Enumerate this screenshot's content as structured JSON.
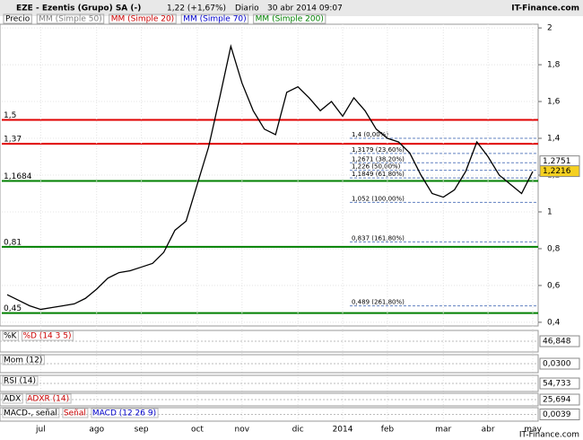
{
  "chart_data": {
    "type": "line",
    "title": "EZE - Ezentis (Grupo) SA (-)",
    "quote": "1,22 (+1,67%)",
    "period": "Diario",
    "date": "30 abr 2014 09:07",
    "source": "IT-Finance.com",
    "legend": [
      "Precio",
      "MM (Simple 50)",
      "MM (Simple 20)",
      "MM (Simple 70)",
      "MM (Simple 200)"
    ],
    "legend_colors": [
      "#000000",
      "#808080",
      "#cc0000",
      "#0000cc",
      "#008000"
    ],
    "categories": [
      null,
      null,
      null,
      "jul",
      null,
      null,
      null,
      null,
      "ago",
      null,
      null,
      null,
      "sep",
      null,
      null,
      null,
      null,
      "oct",
      null,
      null,
      null,
      "nov",
      null,
      null,
      null,
      null,
      "dic",
      null,
      null,
      null,
      "2014",
      null,
      null,
      null,
      "feb",
      null,
      null,
      null,
      null,
      "mar",
      null,
      null,
      null,
      "abr",
      null,
      null,
      null,
      "may"
    ],
    "series": [
      {
        "name": "Precio",
        "color": "#000000",
        "values": [
          0.55,
          0.52,
          0.49,
          0.47,
          0.48,
          0.49,
          0.5,
          0.53,
          0.58,
          0.64,
          0.67,
          0.68,
          0.7,
          0.72,
          0.78,
          0.9,
          0.95,
          1.15,
          1.35,
          1.62,
          1.9,
          1.7,
          1.55,
          1.45,
          1.42,
          1.65,
          1.68,
          1.62,
          1.55,
          1.6,
          1.52,
          1.62,
          1.55,
          1.45,
          1.4,
          1.38,
          1.32,
          1.2,
          1.1,
          1.08,
          1.12,
          1.22,
          1.38,
          1.3,
          1.2,
          1.15,
          1.1,
          1.22
        ]
      }
    ],
    "ylim": [
      0.38,
      2.02
    ],
    "yticks": [
      {
        "value": 0.4,
        "label": "0,4"
      },
      {
        "value": 0.6,
        "label": "0,6"
      },
      {
        "value": 0.8,
        "label": "0,8"
      },
      1,
      {
        "value": 1.2,
        "label": "1,2"
      },
      {
        "value": 1.4,
        "label": "1,4"
      },
      {
        "value": 1.6,
        "label": "1,6"
      },
      {
        "value": 1.8,
        "label": "1,8"
      },
      2
    ],
    "levels": [
      {
        "value": 1.5,
        "label": "1,5",
        "color": "#e00000"
      },
      {
        "value": 1.37,
        "label": "1,37",
        "color": "#e00000"
      },
      {
        "value": 1.1684,
        "label": "1,1684",
        "color": "#008000"
      },
      {
        "value": 0.81,
        "label": "0,81",
        "color": "#008000"
      },
      {
        "value": 0.45,
        "label": "0,45",
        "color": "#008000"
      }
    ],
    "fibonacci": [
      {
        "value": 1.4,
        "label": "1,4 (0,00%)"
      },
      {
        "value": 1.3179,
        "label": "1,3179 (23,60%)"
      },
      {
        "value": 1.2671,
        "label": "1,2671 (38,20%)"
      },
      {
        "value": 1.226,
        "label": "1,226 (50,00%)"
      },
      {
        "value": 1.1849,
        "label": "1,1849 (61,80%)"
      },
      {
        "value": 1.052,
        "label": "1,052 (100,00%)"
      },
      {
        "value": 0.837,
        "label": "0,837 (161,80%)"
      },
      {
        "value": 0.489,
        "label": "0,489 (261,80%)"
      }
    ],
    "price_markers": [
      {
        "value": 1.2751,
        "label": "1,2751",
        "color": "#ffffff"
      },
      {
        "value": 1.2216,
        "label": "1,2216",
        "color": "#f5d020"
      }
    ],
    "indicators": [
      {
        "names": [
          "%K",
          "%D (14 3 5)"
        ],
        "last": {
          "value": 46.848,
          "label": "46,848"
        }
      },
      {
        "names": [
          "Mom (12)"
        ],
        "last": {
          "value": 0.03,
          "label": "0,0300"
        }
      },
      {
        "names": [
          "RSI (14)"
        ],
        "last": {
          "value": 54.733,
          "label": "54,733"
        }
      },
      {
        "names": [
          "ADX",
          "ADXR (14)"
        ],
        "last": {
          "value": 25.694,
          "label": "25,694"
        }
      },
      {
        "names": [
          "MACD-, señal",
          "Señal",
          "MACD (12 26 9)"
        ],
        "last": {
          "value": 0.0039,
          "label": "0,0039"
        }
      }
    ]
  }
}
